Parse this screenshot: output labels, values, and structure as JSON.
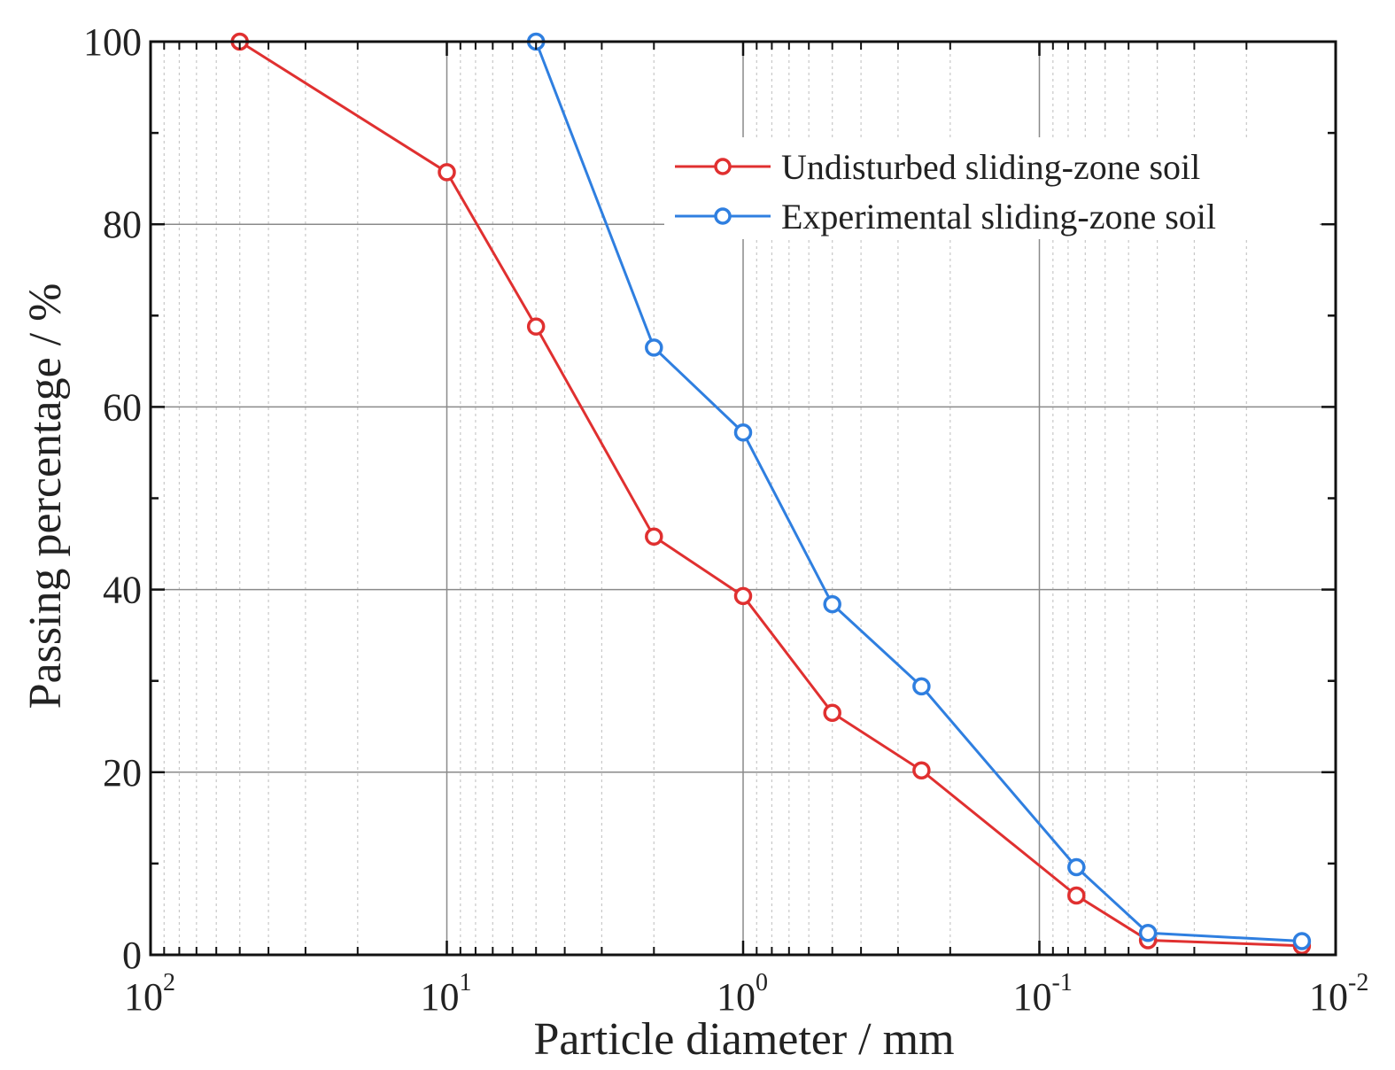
{
  "chart_data": {
    "type": "line",
    "title": "",
    "xlabel": "Particle diameter / mm",
    "ylabel": "Passing percentage / %",
    "xscale": "log",
    "x_reversed": true,
    "xlim": [
      100,
      0.01
    ],
    "ylim": [
      0,
      100
    ],
    "y_ticks": [
      0,
      20,
      40,
      60,
      80,
      100
    ],
    "y_tick_labels": [
      "0",
      "20",
      "40",
      "60",
      "80",
      "100"
    ],
    "x_ticks": [
      100,
      10,
      1,
      0.1,
      0.01
    ],
    "x_tick_labels": [
      {
        "base": "10",
        "exp": "2"
      },
      {
        "base": "10",
        "exp": "1"
      },
      {
        "base": "10",
        "exp": "0"
      },
      {
        "base": "10",
        "exp": "-1"
      },
      {
        "base": "10",
        "exp": "-2"
      }
    ],
    "grid": true,
    "legend_position": "top-right",
    "series": [
      {
        "name": "Undisturbed sliding-zone soil",
        "color": "#e03030",
        "x": [
          50,
          10,
          5,
          2,
          1,
          0.5,
          0.25,
          0.075,
          0.043,
          0.013
        ],
        "y": [
          100,
          85.7,
          68.8,
          45.8,
          39.3,
          26.5,
          20.2,
          6.5,
          1.6,
          1.0
        ]
      },
      {
        "name": "Experimental sliding-zone soil",
        "color": "#2f7fe0",
        "x": [
          5,
          2,
          1,
          0.5,
          0.25,
          0.075,
          0.043,
          0.013
        ],
        "y": [
          100,
          66.5,
          57.2,
          38.4,
          29.4,
          9.6,
          2.4,
          1.5
        ]
      }
    ]
  }
}
